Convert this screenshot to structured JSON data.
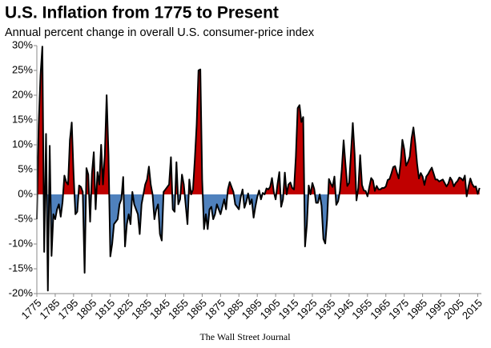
{
  "chart_data": {
    "type": "area",
    "title": "U.S. Inflation from 1775 to Present",
    "subtitle": "Annual percent change in overall U.S. consumer-price index",
    "source": "The Wall Street Journal",
    "x": [
      1775,
      1776,
      1777,
      1778,
      1779,
      1780,
      1781,
      1782,
      1783,
      1784,
      1785,
      1786,
      1787,
      1788,
      1789,
      1790,
      1791,
      1792,
      1793,
      1794,
      1795,
      1796,
      1797,
      1798,
      1799,
      1800,
      1801,
      1802,
      1803,
      1804,
      1805,
      1806,
      1807,
      1808,
      1809,
      1810,
      1811,
      1812,
      1813,
      1814,
      1815,
      1816,
      1817,
      1818,
      1819,
      1820,
      1821,
      1822,
      1823,
      1824,
      1825,
      1826,
      1827,
      1828,
      1829,
      1830,
      1831,
      1832,
      1833,
      1834,
      1835,
      1836,
      1837,
      1838,
      1839,
      1840,
      1841,
      1842,
      1843,
      1844,
      1845,
      1846,
      1847,
      1848,
      1849,
      1850,
      1851,
      1852,
      1853,
      1854,
      1855,
      1856,
      1857,
      1858,
      1859,
      1860,
      1861,
      1862,
      1863,
      1864,
      1865,
      1866,
      1867,
      1868,
      1869,
      1870,
      1871,
      1872,
      1873,
      1874,
      1875,
      1876,
      1877,
      1878,
      1879,
      1880,
      1881,
      1882,
      1883,
      1884,
      1885,
      1886,
      1887,
      1888,
      1889,
      1890,
      1891,
      1892,
      1893,
      1894,
      1895,
      1896,
      1897,
      1898,
      1899,
      1900,
      1901,
      1902,
      1903,
      1904,
      1905,
      1906,
      1907,
      1908,
      1909,
      1910,
      1911,
      1912,
      1913,
      1914,
      1915,
      1916,
      1917,
      1918,
      1919,
      1920,
      1921,
      1922,
      1923,
      1924,
      1925,
      1926,
      1927,
      1928,
      1929,
      1930,
      1931,
      1932,
      1933,
      1934,
      1935,
      1936,
      1937,
      1938,
      1939,
      1940,
      1941,
      1942,
      1943,
      1944,
      1945,
      1946,
      1947,
      1948,
      1949,
      1950,
      1951,
      1952,
      1953,
      1954,
      1955,
      1956,
      1957,
      1958,
      1959,
      1960,
      1961,
      1962,
      1963,
      1964,
      1965,
      1966,
      1967,
      1968,
      1969,
      1970,
      1971,
      1972,
      1973,
      1974,
      1975,
      1976,
      1977,
      1978,
      1979,
      1980,
      1981,
      1982,
      1983,
      1984,
      1985,
      1986,
      1987,
      1988,
      1989,
      1990,
      1991,
      1992,
      1993,
      1994,
      1995,
      1996,
      1997,
      1998,
      1999,
      2000,
      2001,
      2002,
      2003,
      2004,
      2005,
      2006,
      2007,
      2008,
      2009,
      2010,
      2011,
      2012,
      2013,
      2014,
      2015,
      2016
    ],
    "values": [
      -5,
      14,
      24,
      29.8,
      -11.6,
      12.2,
      -19.4,
      9.8,
      -12.4,
      -4,
      -5,
      -3,
      -2,
      -4.5,
      -1.5,
      3.8,
      2.5,
      2,
      11,
      14.5,
      4,
      -4,
      -3.5,
      1.8,
      1.5,
      0.5,
      -15.8,
      5.3,
      4,
      -5.5,
      4.2,
      8.5,
      -3,
      4.5,
      2,
      10,
      2,
      8,
      20,
      8,
      -12.5,
      -10,
      -6,
      -5.5,
      -5,
      -2,
      -1,
      3.5,
      -10.5,
      -6,
      -4,
      -6,
      0.5,
      -2,
      -3,
      -4,
      -8,
      -2,
      0,
      2,
      3,
      5.6,
      2,
      0,
      -5,
      -3,
      -2,
      -8,
      -9.3,
      0.5,
      1,
      1.5,
      2,
      7.5,
      -3,
      -3.5,
      6.5,
      -2,
      -1,
      4,
      2,
      -2,
      -6,
      3,
      0,
      1,
      7,
      14,
      25,
      25.2,
      3,
      -7,
      -4,
      -7,
      -3,
      -2.5,
      -5,
      -4,
      -2,
      -3,
      -4,
      -2.5,
      -1,
      -3,
      1,
      2.5,
      1.5,
      0.5,
      -2,
      -2.5,
      -3,
      -0.5,
      1,
      -2.7,
      -1.5,
      0.2,
      -2,
      -1,
      -4.7,
      -2.4,
      -0.5,
      0.8,
      -1,
      0.3,
      0,
      1.2,
      1,
      1.5,
      3.3,
      0.5,
      -1,
      2,
      4.5,
      -2.5,
      -1,
      4.4,
      0,
      2,
      2.4,
      1.3,
      1,
      7.6,
      17.4,
      18,
      14.6,
      15.6,
      -10.5,
      -6.1,
      1.8,
      0,
      2.3,
      1.1,
      -1.7,
      -1.7,
      0,
      -2.3,
      -9,
      -9.9,
      -5.1,
      3.1,
      2.2,
      1.5,
      3.6,
      -2.1,
      -1.4,
      0.7,
      5,
      10.9,
      6.1,
      1.7,
      2.3,
      8.3,
      14.4,
      8.1,
      -1.2,
      1.3,
      7.9,
      1.9,
      0.8,
      0.7,
      -0.4,
      1.5,
      3.3,
      2.8,
      0.7,
      1.7,
      1,
      1,
      1.3,
      1.3,
      1.6,
      2.9,
      3.1,
      4.2,
      5.5,
      5.7,
      4.4,
      3.2,
      6.2,
      11,
      9.1,
      5.8,
      6.5,
      7.6,
      11.3,
      13.5,
      10.3,
      6.2,
      3.2,
      4.3,
      3.6,
      1.9,
      3.6,
      4.1,
      4.8,
      5.4,
      4.2,
      3,
      3,
      2.6,
      2.8,
      3,
      2.3,
      1.6,
      2.2,
      3.4,
      2.8,
      1.6,
      2.3,
      2.7,
      3.4,
      3.2,
      2.8,
      3.8,
      -0.4,
      1.6,
      3.2,
      2.1,
      1.5,
      1.6,
      0.1,
      1.3
    ],
    "positive_color": "#c00000",
    "negative_color": "#4f81bd",
    "line_color": "#000000",
    "xlim": [
      1775,
      2017
    ],
    "ylim": [
      -20,
      30
    ],
    "xticks": [
      1775,
      1785,
      1795,
      1805,
      1815,
      1825,
      1835,
      1845,
      1855,
      1865,
      1875,
      1885,
      1895,
      1905,
      1915,
      1925,
      1935,
      1945,
      1955,
      1965,
      1975,
      1985,
      1995,
      2005,
      2015
    ],
    "yticks": [
      {
        "value": -20,
        "label": "-20%"
      },
      {
        "value": -15,
        "label": "-15%"
      },
      {
        "value": -10,
        "label": "-10%"
      },
      {
        "value": -5,
        "label": "-5%"
      },
      {
        "value": 0,
        "label": "0%"
      },
      {
        "value": 5,
        "label": "5%"
      },
      {
        "value": 10,
        "label": "10%"
      },
      {
        "value": 15,
        "label": "15%"
      },
      {
        "value": 20,
        "label": "20%"
      },
      {
        "value": 25,
        "label": "25%"
      },
      {
        "value": 30,
        "label": "30%"
      }
    ]
  }
}
